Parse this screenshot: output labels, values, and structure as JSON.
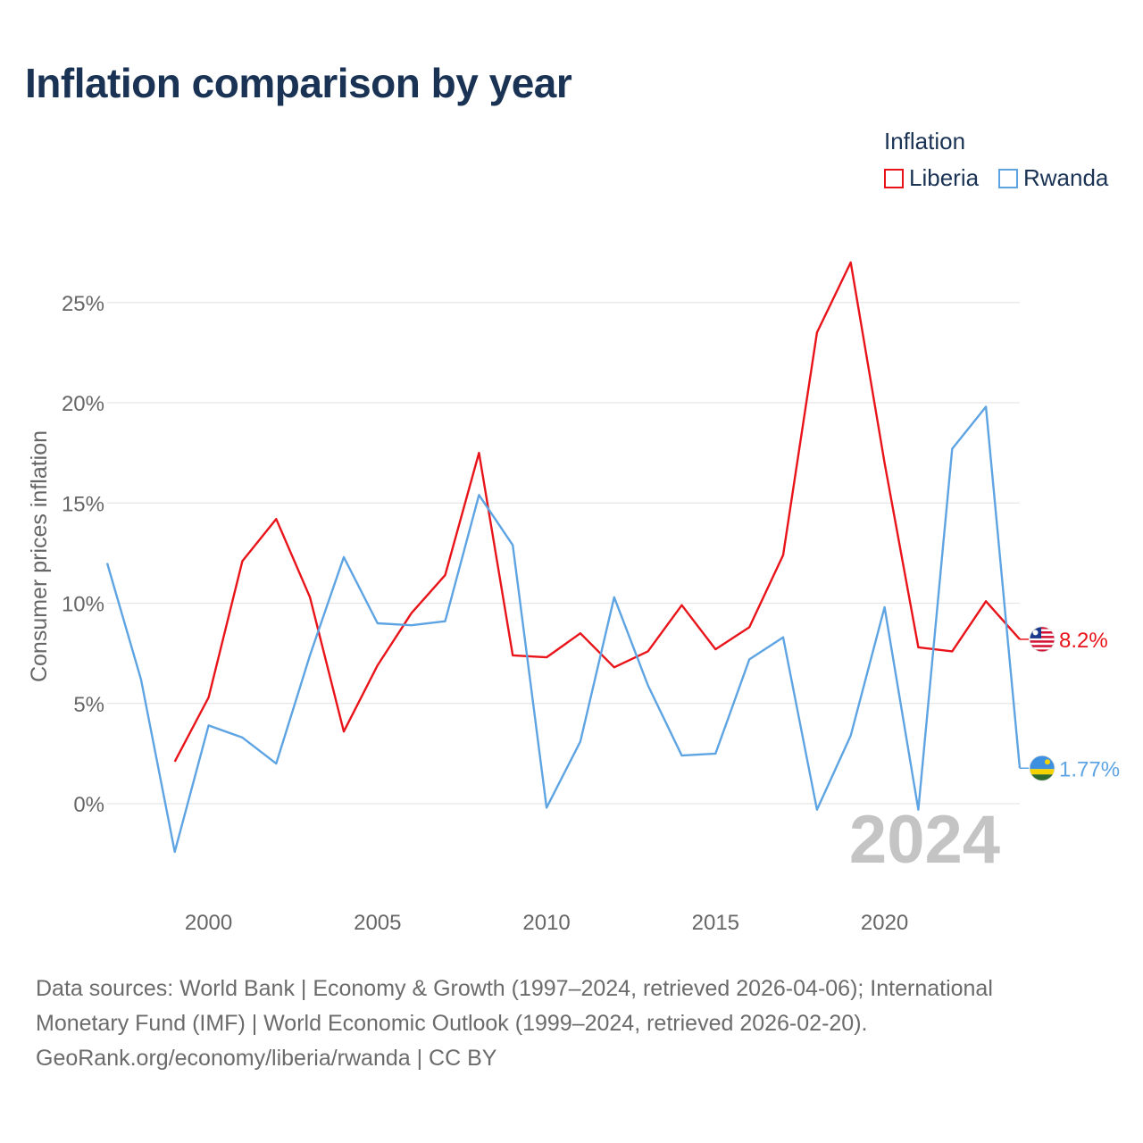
{
  "title": "Inflation comparison by year",
  "legend": {
    "title": "Inflation",
    "items": [
      {
        "label": "Liberia",
        "color": "#e8141a"
      },
      {
        "label": "Rwanda",
        "color": "#5ea4e3"
      }
    ]
  },
  "chart_data": {
    "type": "line",
    "ylabel": "Consumer prices inflation",
    "xlabel": "",
    "xlim": [
      1997,
      2024
    ],
    "ylim": [
      -4,
      28
    ],
    "x_ticks": [
      2000,
      2005,
      2010,
      2015,
      2020
    ],
    "y_ticks": [
      0,
      5,
      10,
      15,
      20,
      25
    ],
    "y_tick_labels": [
      "0%",
      "5%",
      "10%",
      "15%",
      "20%",
      "25%"
    ],
    "year_watermark": "2024",
    "series": [
      {
        "name": "Liberia",
        "color": "#e8141a",
        "end_label": "8.2%",
        "points": [
          [
            1999,
            2.1
          ],
          [
            2000,
            5.3
          ],
          [
            2001,
            12.1
          ],
          [
            2002,
            14.2
          ],
          [
            2003,
            10.3
          ],
          [
            2004,
            3.6
          ],
          [
            2005,
            6.9
          ],
          [
            2006,
            9.5
          ],
          [
            2007,
            11.4
          ],
          [
            2008,
            17.5
          ],
          [
            2009,
            7.4
          ],
          [
            2010,
            7.3
          ],
          [
            2011,
            8.5
          ],
          [
            2012,
            6.8
          ],
          [
            2013,
            7.6
          ],
          [
            2014,
            9.9
          ],
          [
            2015,
            7.7
          ],
          [
            2016,
            8.8
          ],
          [
            2017,
            12.4
          ],
          [
            2018,
            23.5
          ],
          [
            2019,
            27.0
          ],
          [
            2020,
            17.0
          ],
          [
            2021,
            7.8
          ],
          [
            2022,
            7.6
          ],
          [
            2023,
            10.1
          ],
          [
            2024,
            8.2
          ]
        ]
      },
      {
        "name": "Rwanda",
        "color": "#5ea4e3",
        "end_label": "1.77%",
        "points": [
          [
            1997,
            12.0
          ],
          [
            1998,
            6.2
          ],
          [
            1999,
            -2.4
          ],
          [
            2000,
            3.9
          ],
          [
            2001,
            3.3
          ],
          [
            2002,
            2.0
          ],
          [
            2003,
            7.4
          ],
          [
            2004,
            12.3
          ],
          [
            2005,
            9.0
          ],
          [
            2006,
            8.9
          ],
          [
            2007,
            9.1
          ],
          [
            2008,
            15.4
          ],
          [
            2009,
            12.9
          ],
          [
            2010,
            -0.2
          ],
          [
            2011,
            3.1
          ],
          [
            2012,
            10.3
          ],
          [
            2013,
            5.9
          ],
          [
            2014,
            2.4
          ],
          [
            2015,
            2.5
          ],
          [
            2016,
            7.2
          ],
          [
            2017,
            8.3
          ],
          [
            2018,
            -0.3
          ],
          [
            2019,
            3.4
          ],
          [
            2020,
            9.8
          ],
          [
            2021,
            -0.3
          ],
          [
            2022,
            17.7
          ],
          [
            2023,
            19.8
          ],
          [
            2024,
            1.77
          ]
        ]
      }
    ]
  },
  "footer": {
    "line1": "Data sources: World Bank | Economy & Growth (1997–2024, retrieved 2026-04-06); International",
    "line2": "Monetary Fund (IMF) | World Economic Outlook (1999–2024, retrieved 2026-02-20).",
    "line3": "GeoRank.org/economy/liberia/rwanda | CC BY"
  },
  "icons": {
    "liberia": "liberia-flag-icon",
    "rwanda": "rwanda-flag-icon"
  }
}
